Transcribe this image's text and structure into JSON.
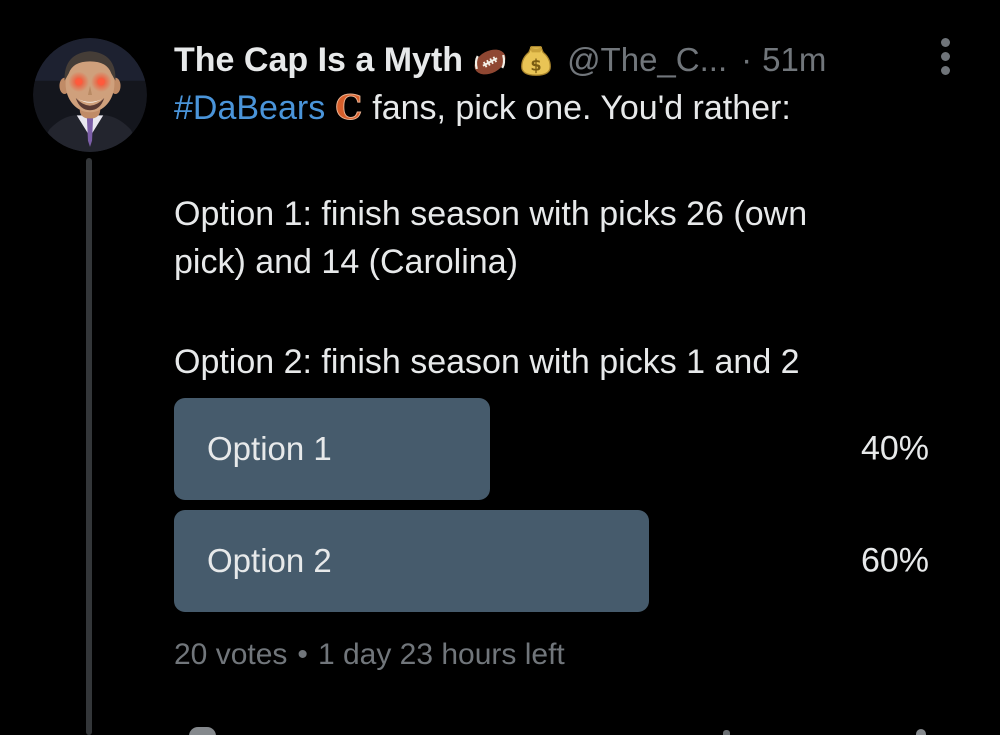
{
  "app": "twitter-dark-post-detail",
  "post": {
    "author": {
      "name": "The Cap Is a Myth",
      "name_emojis": [
        "football",
        "money-bag"
      ],
      "handle": "@The_C...",
      "separator": "·",
      "timestamp": "51m"
    },
    "text": {
      "hashtag": "#DaBears",
      "bears_logo_glyph": "C",
      "line1_rest": "fans, pick one. You'd rather:",
      "paragraph1_line1": "Option 1: finish season with picks 26 (own",
      "paragraph1_line2": "pick) and 14 (Carolina)",
      "paragraph2": "Option 2: finish season with picks 1 and 2"
    },
    "poll": {
      "options": [
        {
          "label": "Option 1",
          "percent_label": "40%",
          "value": 40
        },
        {
          "label": "Option 2",
          "percent_label": "60%",
          "value": 60
        }
      ],
      "votes": "20 votes",
      "separator": "•",
      "time_left": "1 day 23 hours left"
    },
    "colors": {
      "background": "#000000",
      "primary_text": "#e7e9ea",
      "secondary_text": "#71767b",
      "link_blue": "#4a94d9",
      "poll_bar": "#465b6c",
      "thread_line": "#333639",
      "bears_orange": "#d85f2b"
    }
  }
}
